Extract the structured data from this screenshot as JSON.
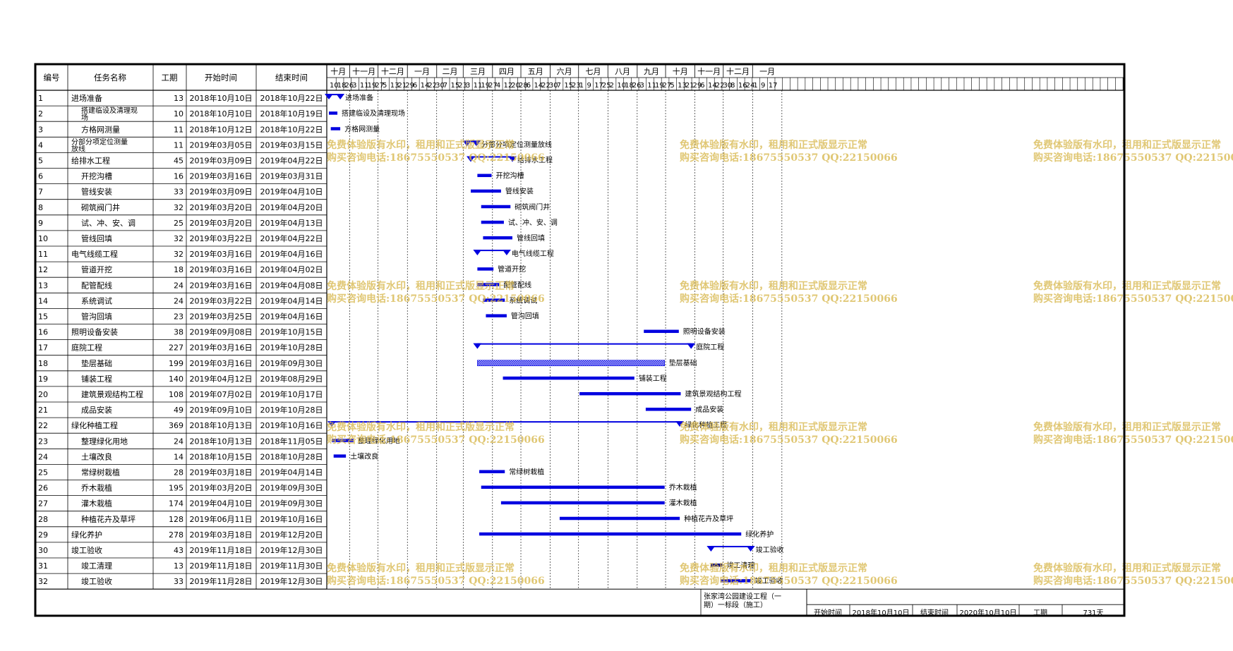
{
  "table": {
    "headers": [
      "编号",
      "任务名称",
      "工期",
      "开始时间",
      "结束时间"
    ],
    "rows": [
      [
        "1",
        "进场准备",
        "13",
        "2018年10月10日",
        "2018年10月22日"
      ],
      [
        "2",
        "搭建临设及清理现场",
        "10",
        "2018年10月10日",
        "2018年10月19日"
      ],
      [
        "3",
        "方格网测量",
        "11",
        "2018年10月12日",
        "2018年10月22日"
      ],
      [
        "4",
        "分部分项定位测量放线",
        "11",
        "2019年03月05日",
        "2019年03月15日"
      ],
      [
        "5",
        "给排水工程",
        "45",
        "2019年03月09日",
        "2019年04月22日"
      ],
      [
        "6",
        "开挖沟槽",
        "16",
        "2019年03月16日",
        "2019年03月31日"
      ],
      [
        "7",
        "管线安装",
        "33",
        "2019年03月09日",
        "2019年04月10日"
      ],
      [
        "8",
        "砌筑阀门井",
        "32",
        "2019年03月20日",
        "2019年04月20日"
      ],
      [
        "9",
        "试、冲、安、调",
        "25",
        "2019年03月20日",
        "2019年04月13日"
      ],
      [
        "10",
        "管线回填",
        "32",
        "2019年03月22日",
        "2019年04月22日"
      ],
      [
        "11",
        "电气线缆工程",
        "32",
        "2019年03月16日",
        "2019年04月16日"
      ],
      [
        "12",
        "管道开挖",
        "18",
        "2019年03月16日",
        "2019年04月02日"
      ],
      [
        "13",
        "配管配线",
        "24",
        "2019年03月16日",
        "2019年04月08日"
      ],
      [
        "14",
        "系统调试",
        "24",
        "2019年03月22日",
        "2019年04月14日"
      ],
      [
        "15",
        "管沟回填",
        "23",
        "2019年03月25日",
        "2019年04月16日"
      ],
      [
        "16",
        "照明设备安装",
        "38",
        "2019年09月08日",
        "2019年10月15日"
      ],
      [
        "17",
        "庭院工程",
        "227",
        "2019年03月16日",
        "2019年10月28日"
      ],
      [
        "18",
        "垫层基础",
        "199",
        "2019年03月16日",
        "2019年09月30日"
      ],
      [
        "19",
        "铺装工程",
        "140",
        "2019年04月12日",
        "2019年08月29日"
      ],
      [
        "20",
        "建筑景观结构工程",
        "108",
        "2019年07月02日",
        "2019年10月17日"
      ],
      [
        "21",
        "成品安装",
        "49",
        "2019年09月10日",
        "2019年10月28日"
      ],
      [
        "22",
        "绿化种植工程",
        "369",
        "2018年10月13日",
        "2019年10月16日"
      ],
      [
        "23",
        "整理绿化用地",
        "24",
        "2018年10月13日",
        "2018年11月05日"
      ],
      [
        "24",
        "土壤改良",
        "14",
        "2018年10月15日",
        "2018年10月28日"
      ],
      [
        "25",
        "常绿树栽植",
        "28",
        "2019年03月18日",
        "2019年04月14日"
      ],
      [
        "26",
        "乔木栽植",
        "195",
        "2019年03月20日",
        "2019年09月30日"
      ],
      [
        "27",
        "灌木栽植",
        "174",
        "2019年04月10日",
        "2019年09月30日"
      ],
      [
        "28",
        "种植花卉及草坪",
        "128",
        "2019年06月11日",
        "2019年10月16日"
      ],
      [
        "29",
        "绿化养护",
        "278",
        "2019年03月18日",
        "2019年12月20日"
      ],
      [
        "30",
        "竣工验收",
        "43",
        "2019年11月18日",
        "2019年12月30日"
      ],
      [
        "31",
        "竣工清理",
        "13",
        "2019年11月18日",
        "2019年11月30日"
      ],
      [
        "32",
        "竣工验收",
        "33",
        "2019年11月28日",
        "2019年12月30日"
      ]
    ],
    "indented_rows": [
      2,
      3,
      6,
      7,
      8,
      9,
      10,
      12,
      13,
      14,
      15,
      18,
      19,
      20,
      21,
      23,
      24,
      25,
      26,
      27,
      28,
      31,
      32
    ],
    "summary_rows": [
      1,
      4,
      5,
      11,
      17,
      22,
      30
    ],
    "highlight_row": 32,
    "highlight_color": "#ff0000"
  },
  "timeline": {
    "months": [
      "十月",
      "十一月",
      "十二月",
      "一月",
      "二月",
      "三月",
      "四月",
      "五月",
      "六月",
      "七月",
      "八月",
      "九月",
      "十月",
      "十一月",
      "十二月",
      "一月"
    ],
    "days": [
      "10",
      "18",
      "26",
      "3",
      "11",
      "19",
      "27",
      "5",
      "13",
      "21",
      "29",
      "6",
      "14",
      "22",
      "30",
      "7",
      "15",
      "23",
      "3",
      "11",
      "19",
      "27",
      "4",
      "12",
      "20",
      "28",
      "6",
      "14",
      "22",
      "30",
      "7",
      "15",
      "23",
      "1",
      "9",
      "17",
      "25",
      "2",
      "10",
      "18",
      "26",
      "3",
      "11",
      "19",
      "27",
      "5",
      "13",
      "21",
      "29",
      "6",
      "14",
      "22",
      "30",
      "8",
      "16",
      "24",
      "1",
      "9",
      "17"
    ],
    "start_date": "2018-10-10"
  },
  "bars": [
    {
      "row": 1,
      "type": "summary",
      "start": "2018-10-10",
      "end": "2018-10-22",
      "label": "进场准备"
    },
    {
      "row": 2,
      "type": "task",
      "start": "2018-10-10",
      "end": "2018-10-19",
      "label": "搭建临设及清理现场"
    },
    {
      "row": 3,
      "type": "task",
      "start": "2018-10-12",
      "end": "2018-10-22",
      "label": "方格网测量"
    },
    {
      "row": 4,
      "type": "summary",
      "start": "2019-03-05",
      "end": "2019-03-15",
      "label": "分部分项定位测量放线"
    },
    {
      "row": 5,
      "type": "summary",
      "start": "2019-03-09",
      "end": "2019-04-22",
      "label": "给排水工程"
    },
    {
      "row": 6,
      "type": "task",
      "start": "2019-03-16",
      "end": "2019-03-31",
      "label": "开挖沟槽"
    },
    {
      "row": 7,
      "type": "task",
      "start": "2019-03-09",
      "end": "2019-04-10",
      "label": "管线安装"
    },
    {
      "row": 8,
      "type": "task",
      "start": "2019-03-20",
      "end": "2019-04-20",
      "label": "砌筑阀门井"
    },
    {
      "row": 9,
      "type": "task",
      "start": "2019-03-20",
      "end": "2019-04-13",
      "label": "试、冲、安、调"
    },
    {
      "row": 10,
      "type": "task",
      "start": "2019-03-22",
      "end": "2019-04-22",
      "label": "管线回填"
    },
    {
      "row": 11,
      "type": "summary",
      "start": "2019-03-16",
      "end": "2019-04-16",
      "label": "电气线缆工程"
    },
    {
      "row": 12,
      "type": "task",
      "start": "2019-03-16",
      "end": "2019-04-02",
      "label": "管道开挖"
    },
    {
      "row": 13,
      "type": "task",
      "start": "2019-03-16",
      "end": "2019-04-08",
      "label": "配管配线"
    },
    {
      "row": 14,
      "type": "task",
      "start": "2019-03-22",
      "end": "2019-04-14",
      "label": "系统调试"
    },
    {
      "row": 15,
      "type": "task",
      "start": "2019-03-25",
      "end": "2019-04-16",
      "label": "管沟回填"
    },
    {
      "row": 16,
      "type": "task",
      "start": "2019-09-08",
      "end": "2019-10-15",
      "label": "照明设备安装"
    },
    {
      "row": 17,
      "type": "summary",
      "start": "2019-03-16",
      "end": "2019-10-28",
      "label": "庭院工程"
    },
    {
      "row": 18,
      "type": "hatched",
      "start": "2019-03-16",
      "end": "2019-09-30",
      "label": "垫层基础"
    },
    {
      "row": 19,
      "type": "task",
      "start": "2019-04-12",
      "end": "2019-08-29",
      "label": "铺装工程"
    },
    {
      "row": 20,
      "type": "task",
      "start": "2019-07-02",
      "end": "2019-10-17",
      "label": "建筑景观结构工程"
    },
    {
      "row": 21,
      "type": "task",
      "start": "2019-09-10",
      "end": "2019-10-28",
      "label": "成品安装"
    },
    {
      "row": 22,
      "type": "summary",
      "start": "2018-10-13",
      "end": "2019-10-16",
      "label": "绿化种植工程"
    },
    {
      "row": 23,
      "type": "task",
      "start": "2018-10-13",
      "end": "2018-11-05",
      "label": "整理绿化用地"
    },
    {
      "row": 24,
      "type": "task",
      "start": "2018-10-15",
      "end": "2018-10-28",
      "label": "土壤改良"
    },
    {
      "row": 25,
      "type": "task",
      "start": "2019-03-18",
      "end": "2019-04-14",
      "label": "常绿树栽植"
    },
    {
      "row": 26,
      "type": "task",
      "start": "2019-03-20",
      "end": "2019-09-30",
      "label": "乔木栽植"
    },
    {
      "row": 27,
      "type": "task",
      "start": "2019-04-10",
      "end": "2019-09-30",
      "label": "灌木栽植"
    },
    {
      "row": 28,
      "type": "task",
      "start": "2019-06-11",
      "end": "2019-10-16",
      "label": "种植花卉及草坪"
    },
    {
      "row": 29,
      "type": "task",
      "start": "2019-03-18",
      "end": "2019-12-20",
      "label": "绿化养护"
    },
    {
      "row": 30,
      "type": "summary",
      "start": "2019-11-18",
      "end": "2019-12-30",
      "label": "竣工验收"
    },
    {
      "row": 31,
      "type": "task-dark",
      "start": "2019-11-18",
      "end": "2019-11-30",
      "label": "竣工清理"
    },
    {
      "row": 32,
      "type": "task",
      "start": "2019-11-28",
      "end": "2019-12-30",
      "label": "竣工验收",
      "label_color": "#ff0000"
    }
  ],
  "footer": {
    "project_name_line1": "张家湾公园建设工程（一",
    "project_name_line2": "期）一标段（施工）",
    "start_label": "开始时间",
    "start_value": "2018年10月10日",
    "end_label": "结束时间",
    "end_value": "2020年10月10日",
    "duration_label": "工期",
    "duration_value": "731天"
  },
  "watermark": {
    "line1": "免费体验版有水印，租用和正式版显示正常",
    "line2": "购买咨询电话:18675550537 QQ:22150066"
  },
  "colors": {
    "bar": "#0000e0",
    "bar_dark": "#000080",
    "border": "#000000",
    "grid": "#000000",
    "watermark": "#d8b84e"
  }
}
